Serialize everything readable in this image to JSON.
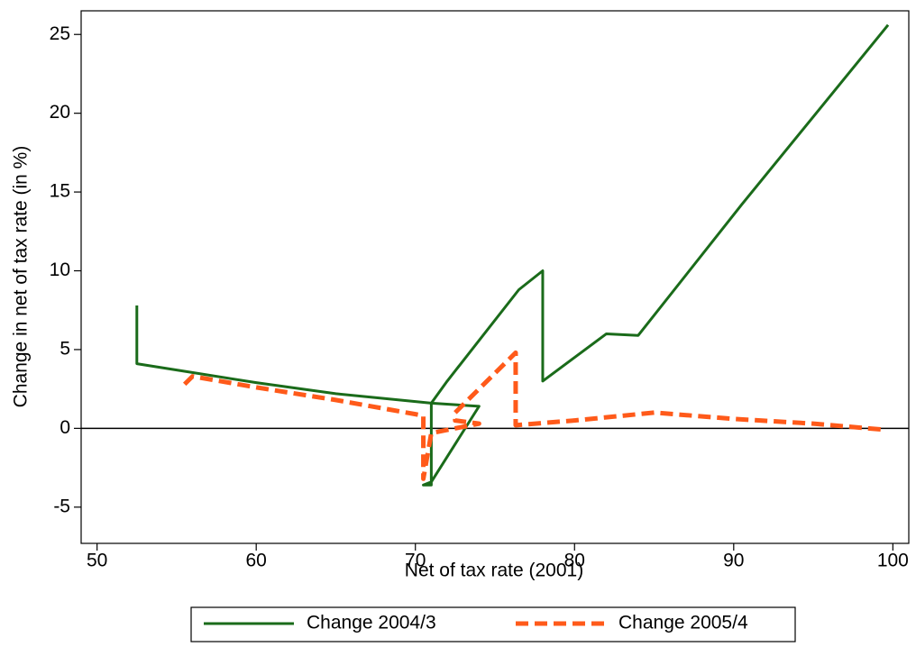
{
  "chart_data": {
    "type": "line",
    "x_label": "Net of tax rate (2001)",
    "y_label": "Change in net of tax rate (in %)",
    "xlim": [
      49,
      101
    ],
    "xticks": [
      50,
      60,
      70,
      80,
      90,
      100
    ],
    "ylim": [
      -7.3,
      26.5
    ],
    "yticks": [
      -5,
      0,
      5,
      10,
      15,
      20,
      25
    ],
    "reference_line": 0,
    "legend": "bottom",
    "series": [
      {
        "name": "Change 2004/3",
        "color": "#1a6b1a",
        "dash": false,
        "x": [
          52.5,
          52.5,
          55,
          60,
          65,
          70,
          71,
          74,
          71,
          70.5,
          71,
          71,
          72,
          76.5,
          78,
          78,
          80,
          82,
          84,
          90.5,
          99.7
        ],
        "values": [
          7.8,
          4.1,
          3.7,
          2.9,
          2.2,
          1.7,
          1.6,
          1.4,
          -3.4,
          -3.6,
          -3.6,
          1.6,
          3,
          8.8,
          10,
          3,
          4.5,
          6,
          5.9,
          14.2,
          25.6
        ]
      },
      {
        "name": "Change 2005/4",
        "color": "#ff5a1a",
        "dash": true,
        "x": [
          55.5,
          56,
          60,
          65,
          70,
          70.5,
          70.5,
          71,
          74,
          72.5,
          72.5,
          76.3,
          76.3,
          80,
          85,
          90,
          95,
          99.6
        ],
        "values": [
          2.8,
          3.3,
          2.6,
          1.8,
          0.9,
          0.8,
          -3.2,
          -0.3,
          0.3,
          0.5,
          1,
          4.8,
          0.2,
          0.5,
          1.0,
          0.6,
          0.3,
          -0.1
        ]
      }
    ]
  }
}
